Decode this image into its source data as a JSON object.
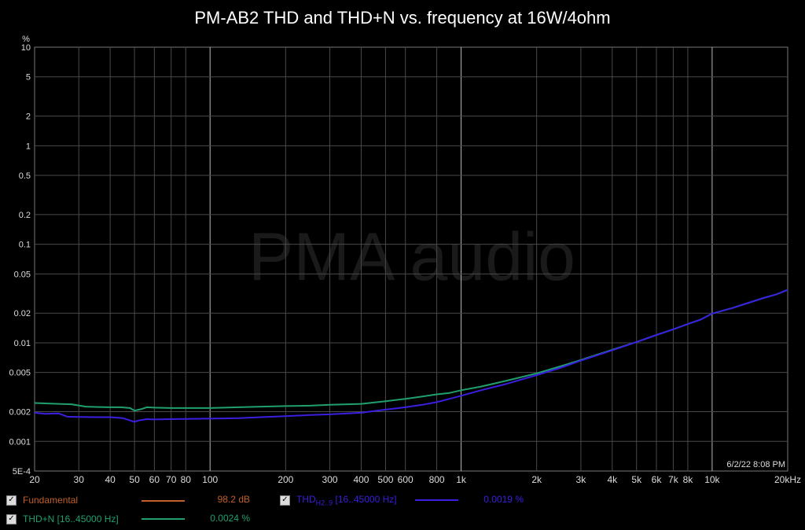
{
  "chart_data": {
    "type": "line",
    "title": "PM-AB2 THD and THD+N vs. frequency at 16W/4ohm",
    "y_unit_label": "%",
    "x_scale": "log",
    "y_scale": "log",
    "xlim": [
      20,
      20000
    ],
    "ylim": [
      0.0005,
      10
    ],
    "x_ticks": [
      20,
      30,
      40,
      50,
      60,
      70,
      80,
      100,
      200,
      300,
      400,
      500,
      600,
      800,
      1000,
      2000,
      3000,
      4000,
      5000,
      6000,
      7000,
      8000,
      10000,
      20000
    ],
    "x_tick_labels": [
      "20",
      "30",
      "40",
      "50",
      "60",
      "70",
      "80",
      "100",
      "200",
      "300",
      "400",
      "500",
      "600",
      "800",
      "1k",
      "2k",
      "3k",
      "4k",
      "5k",
      "6k",
      "7k",
      "8k",
      "10k",
      "20kHz"
    ],
    "y_ticks": [
      0.0005,
      0.001,
      0.002,
      0.005,
      0.01,
      0.02,
      0.05,
      0.1,
      0.2,
      0.5,
      1,
      2,
      5,
      10
    ],
    "y_tick_labels": [
      "5E-4",
      "0.001",
      "0.002",
      "0.005",
      "0.01",
      "0.02",
      "0.05",
      "0.1",
      "0.2",
      "0.5",
      "1",
      "2",
      "5",
      "10"
    ],
    "grid": true,
    "watermark": "PMA audio",
    "timestamp": "6/2/22 8:08 PM",
    "series": [
      {
        "name": "THD+N [16..45000 Hz]",
        "color": "#1fa06e",
        "x": [
          20,
          25,
          28,
          32,
          36,
          40,
          44,
          48,
          50,
          53,
          56,
          60,
          70,
          80,
          100,
          130,
          160,
          200,
          250,
          300,
          400,
          500,
          600,
          700,
          800,
          900,
          1000,
          1200,
          1500,
          2000,
          2500,
          3000,
          4000,
          5000,
          6000,
          7000,
          8000,
          9000,
          10000,
          12000,
          14000,
          16000,
          18000,
          20000
        ],
        "y": [
          0.00245,
          0.0024,
          0.00238,
          0.00225,
          0.00223,
          0.00222,
          0.00222,
          0.00218,
          0.00205,
          0.00212,
          0.00222,
          0.0022,
          0.00218,
          0.00218,
          0.00218,
          0.00222,
          0.00225,
          0.00228,
          0.0023,
          0.00235,
          0.0024,
          0.00255,
          0.0027,
          0.00285,
          0.003,
          0.0031,
          0.0033,
          0.0036,
          0.0041,
          0.0049,
          0.0058,
          0.0067,
          0.0085,
          0.0102,
          0.012,
          0.0137,
          0.0155,
          0.0172,
          0.0198,
          0.0225,
          0.0255,
          0.0285,
          0.031,
          0.0345
        ]
      },
      {
        "name": "THD H2..9 [16..45000 Hz]",
        "color": "#3a1fe0",
        "x": [
          20,
          22,
          25,
          27,
          30,
          35,
          40,
          45,
          48,
          50,
          52,
          56,
          60,
          70,
          80,
          100,
          130,
          160,
          200,
          250,
          300,
          400,
          500,
          600,
          700,
          800,
          900,
          1000,
          1200,
          1500,
          2000,
          2500,
          3000,
          4000,
          5000,
          6000,
          7000,
          8000,
          9000,
          10000,
          12000,
          14000,
          16000,
          18000,
          20000
        ],
        "y": [
          0.00195,
          0.0019,
          0.00192,
          0.00178,
          0.00177,
          0.00176,
          0.00176,
          0.00172,
          0.00163,
          0.00158,
          0.00163,
          0.00168,
          0.00167,
          0.00168,
          0.00169,
          0.0017,
          0.00172,
          0.00176,
          0.0018,
          0.00185,
          0.00188,
          0.00195,
          0.0021,
          0.00222,
          0.00235,
          0.0025,
          0.0027,
          0.0029,
          0.0033,
          0.0038,
          0.0047,
          0.0056,
          0.0066,
          0.0084,
          0.0102,
          0.012,
          0.0137,
          0.0155,
          0.0172,
          0.0198,
          0.0225,
          0.0255,
          0.0285,
          0.031,
          0.0345
        ]
      }
    ]
  },
  "legend": {
    "fundamental": {
      "label": "Fundamental",
      "value": "98.2 dB",
      "color": "#c0602a"
    },
    "thdn": {
      "label": "THD+N [16..45000 Hz]",
      "value": "0.0024 %",
      "color": "#1fa06e"
    },
    "thd": {
      "label_main": "THD",
      "label_sub": "H2..9",
      "label_tail": " [16..45000 Hz]",
      "value": "0.0019 %",
      "color": "#3a1fe0"
    },
    "check": "✓"
  }
}
